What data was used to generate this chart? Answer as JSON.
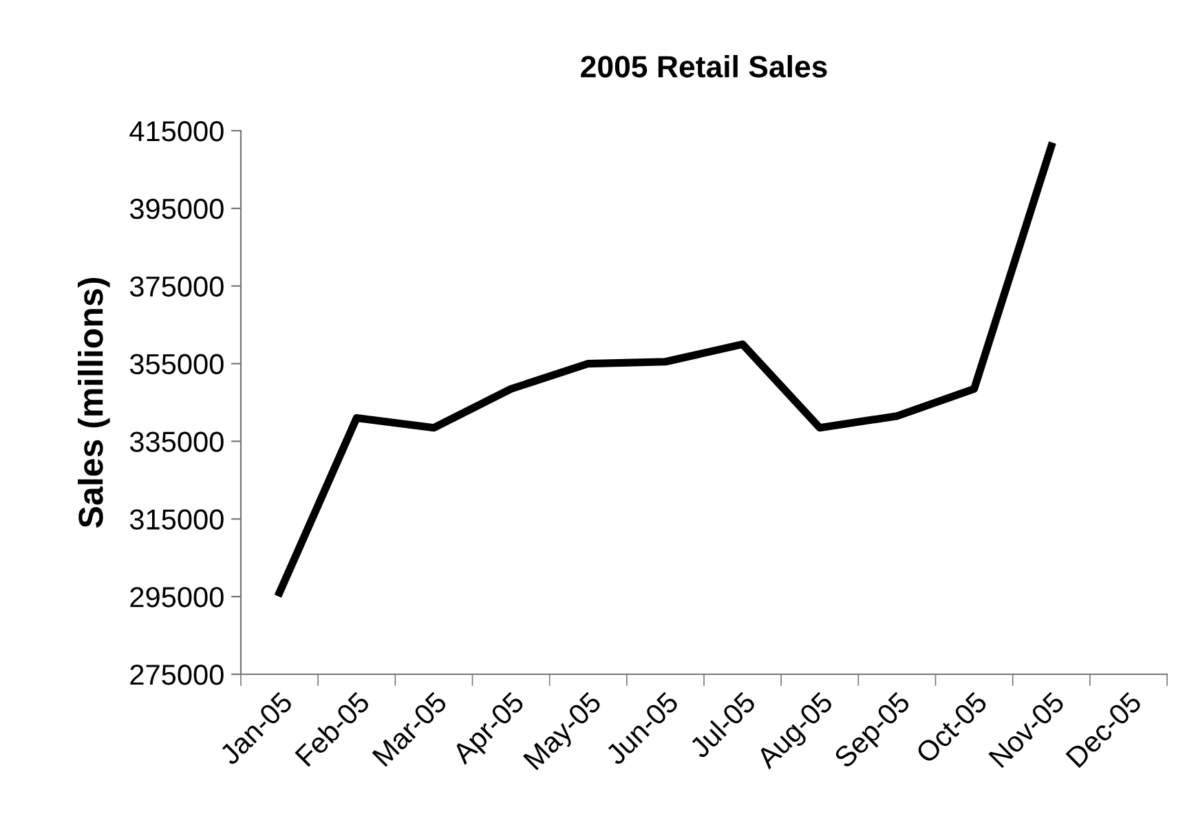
{
  "chart_data": {
    "type": "line",
    "title": "2005 Retail Sales",
    "ylabel": "Sales (millions)",
    "categories": [
      "Jan-05",
      "Feb-05",
      "Mar-05",
      "Apr-05",
      "May-05",
      "Jun-05",
      "Jul-05",
      "Aug-05",
      "Sep-05",
      "Oct-05",
      "Nov-05",
      "Dec-05"
    ],
    "series": [
      {
        "color": "#000000",
        "values": [
          296000,
          341000,
          338500,
          348500,
          355000,
          355500,
          360000,
          338500,
          341500,
          348500,
          411000,
          null
        ]
      }
    ],
    "ylim": [
      275000,
      415000
    ],
    "yticks": [
      275000,
      295000,
      315000,
      335000,
      355000,
      375000,
      395000,
      415000
    ],
    "grid": false,
    "legend": false,
    "marker": "none",
    "line_style": "solid"
  }
}
